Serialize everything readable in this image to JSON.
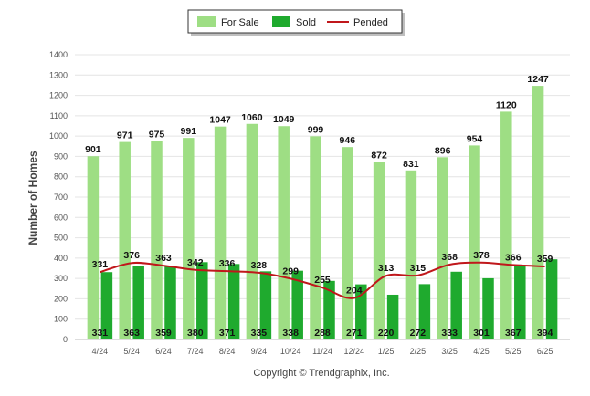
{
  "chart_data": {
    "type": "bar",
    "ylabel": "Number of Homes",
    "ylim": [
      0,
      1400
    ],
    "yticks": [
      0,
      100,
      200,
      300,
      400,
      500,
      600,
      700,
      800,
      900,
      1000,
      1100,
      1200,
      1300,
      1400
    ],
    "grid": true,
    "legend_position": "top-center",
    "categories": [
      "4/24",
      "5/24",
      "6/24",
      "7/24",
      "8/24",
      "9/24",
      "10/24",
      "11/24",
      "12/24",
      "1/25",
      "2/25",
      "3/25",
      "4/25",
      "5/25",
      "6/25"
    ],
    "series": [
      {
        "name": "For Sale",
        "kind": "bar",
        "color": "#9ede84",
        "values": [
          901,
          971,
          975,
          991,
          1047,
          1060,
          1049,
          999,
          946,
          872,
          831,
          896,
          954,
          1120,
          1247
        ]
      },
      {
        "name": "Sold",
        "kind": "bar",
        "color": "#1faa2e",
        "values": [
          331,
          363,
          359,
          380,
          371,
          335,
          338,
          288,
          271,
          220,
          272,
          333,
          301,
          367,
          394
        ]
      },
      {
        "name": "Pended",
        "kind": "line",
        "color": "#c0171b",
        "values": [
          331,
          376,
          363,
          342,
          336,
          328,
          299,
          255,
          204,
          313,
          315,
          368,
          378,
          366,
          359
        ]
      }
    ]
  },
  "footer": {
    "copyright": "Copyright © Trendgraphix, Inc."
  }
}
